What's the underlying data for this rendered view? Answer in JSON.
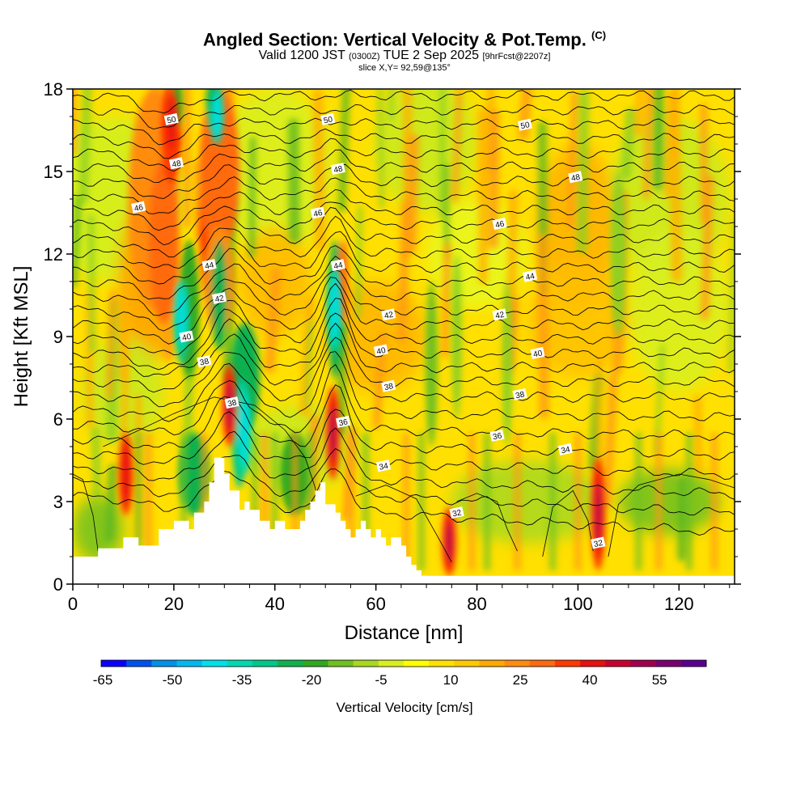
{
  "header": {
    "title": "Angled Section: Vertical Velocity & Pot.Temp.",
    "title_note": "(C)",
    "valid_prefix": "Valid 1200 JST",
    "valid_utc": "(0300Z)",
    "valid_date": "TUE 2 Sep 2025",
    "forecast": "[9hrFcst@2207z]",
    "slice": "slice X,Y= 92,59@135°"
  },
  "chart_data": {
    "type": "heatmap",
    "title": "Angled Section: Vertical Velocity & Pot.Temp.",
    "xlabel": "Distance [nm]",
    "ylabel": "Height [Kft MSL]",
    "xlim": [
      0,
      131
    ],
    "ylim": [
      0,
      18
    ],
    "x_ticks": [
      0,
      20,
      40,
      60,
      80,
      100,
      120
    ],
    "y_ticks": [
      0,
      3,
      6,
      9,
      12,
      15,
      18
    ],
    "colorbar": {
      "title": "Vertical Velocity [cm/s]",
      "tick_labels": [
        "-65",
        "-50",
        "-35",
        "-20",
        "-5",
        "10",
        "25",
        "40",
        "55"
      ],
      "colors": [
        "#0a00ff",
        "#0050f0",
        "#0090e8",
        "#00b8f0",
        "#00e0e8",
        "#00d8b0",
        "#00c888",
        "#10b050",
        "#30a820",
        "#70c020",
        "#a8d820",
        "#d8f020",
        "#ffff00",
        "#ffe000",
        "#ffc800",
        "#ffa800",
        "#ff8c10",
        "#ff6a10",
        "#ff3800",
        "#e81010",
        "#c80030",
        "#a00050",
        "#7a0070",
        "#5a0090"
      ]
    },
    "theta_contours": {
      "levels": [
        32,
        34,
        36,
        38,
        40,
        42,
        44,
        46,
        48,
        50
      ],
      "labels": [
        {
          "text": "50",
          "x": 19.5,
          "y": 16.9
        },
        {
          "text": "50",
          "x": 50.5,
          "y": 16.9
        },
        {
          "text": "50",
          "x": 89.5,
          "y": 16.7
        },
        {
          "text": "48",
          "x": 20.5,
          "y": 15.3
        },
        {
          "text": "48",
          "x": 52.5,
          "y": 15.1
        },
        {
          "text": "48",
          "x": 99.5,
          "y": 14.8
        },
        {
          "text": "46",
          "x": 13,
          "y": 13.7
        },
        {
          "text": "46",
          "x": 48.5,
          "y": 13.5
        },
        {
          "text": "46",
          "x": 84.5,
          "y": 13.1
        },
        {
          "text": "44",
          "x": 27,
          "y": 11.6
        },
        {
          "text": "44",
          "x": 52.5,
          "y": 11.6
        },
        {
          "text": "44",
          "x": 90.5,
          "y": 11.2
        },
        {
          "text": "42",
          "x": 29,
          "y": 10.4
        },
        {
          "text": "42",
          "x": 62.5,
          "y": 9.8
        },
        {
          "text": "42",
          "x": 84.5,
          "y": 9.8
        },
        {
          "text": "40",
          "x": 22.5,
          "y": 9.0
        },
        {
          "text": "40",
          "x": 61,
          "y": 8.5
        },
        {
          "text": "40",
          "x": 92,
          "y": 8.4
        },
        {
          "text": "38",
          "x": 26,
          "y": 8.1
        },
        {
          "text": "38",
          "x": 62.5,
          "y": 7.2
        },
        {
          "text": "38",
          "x": 88.5,
          "y": 6.9
        },
        {
          "text": "38",
          "x": 31.5,
          "y": 6.6
        },
        {
          "text": "36",
          "x": 53.5,
          "y": 5.9
        },
        {
          "text": "36",
          "x": 84,
          "y": 5.4
        },
        {
          "text": "34",
          "x": 61.5,
          "y": 4.3
        },
        {
          "text": "34",
          "x": 97.5,
          "y": 4.9
        },
        {
          "text": "32",
          "x": 76,
          "y": 2.6
        },
        {
          "text": "32",
          "x": 104,
          "y": 1.5
        }
      ]
    },
    "terrain_profile": {
      "x": [
        0,
        5,
        5,
        10,
        10,
        13,
        13,
        17,
        17,
        20,
        20,
        23,
        23,
        24,
        24,
        26,
        26,
        27,
        27,
        28,
        28,
        30,
        30,
        31,
        31,
        33,
        33,
        34,
        34,
        35,
        35,
        37,
        37,
        39,
        39,
        40,
        40,
        42,
        42,
        45,
        45,
        46,
        46,
        47,
        47,
        48,
        48,
        49,
        49,
        50,
        50,
        52,
        52,
        53,
        53,
        54,
        54,
        55,
        55,
        56,
        56,
        57,
        57,
        58,
        58,
        59,
        59,
        60,
        60,
        61,
        61,
        62,
        62,
        63,
        63,
        65,
        65,
        66,
        66,
        67,
        67,
        68,
        68,
        69,
        69,
        70,
        70,
        71,
        71,
        72,
        72,
        131
      ],
      "y": [
        1.0,
        1.0,
        1.3,
        1.3,
        1.7,
        1.7,
        1.4,
        1.4,
        2.0,
        2.0,
        2.3,
        2.3,
        2.0,
        2.0,
        2.6,
        2.6,
        3.0,
        3.0,
        3.7,
        3.7,
        4.6,
        4.6,
        4.0,
        4.0,
        3.4,
        3.4,
        2.7,
        2.7,
        3.0,
        3.0,
        2.7,
        2.7,
        2.3,
        2.3,
        2.0,
        2.0,
        2.3,
        2.3,
        2.0,
        2.0,
        2.3,
        2.3,
        2.7,
        2.7,
        3.0,
        3.0,
        3.4,
        3.4,
        3.7,
        3.7,
        2.9,
        2.9,
        2.6,
        2.6,
        2.3,
        2.3,
        2.0,
        2.0,
        1.7,
        1.7,
        2.0,
        2.0,
        2.3,
        2.3,
        2.0,
        2.0,
        1.7,
        1.7,
        2.0,
        2.0,
        1.7,
        1.7,
        1.4,
        1.4,
        1.7,
        1.7,
        1.4,
        1.4,
        1.0,
        1.0,
        0.7,
        0.7,
        0.5,
        0.5,
        0.3,
        0.3,
        0.2,
        0.2,
        0.1,
        0.1,
        0.0,
        0.0
      ]
    },
    "updraft_cores": [
      {
        "x": 31,
        "z_min": 5.0,
        "z_max": 8.0,
        "value": 55
      },
      {
        "x": 51.5,
        "z_min": 3.8,
        "z_max": 7.2,
        "value": 45
      },
      {
        "x": 74.5,
        "z_min": 0.3,
        "z_max": 2.8,
        "value": 45
      },
      {
        "x": 104,
        "z_min": 0.5,
        "z_max": 4.6,
        "value": 55
      },
      {
        "x": 10.5,
        "z_min": 2.5,
        "z_max": 5.5,
        "value": 30
      },
      {
        "x": 19.5,
        "z_min": 15.5,
        "z_max": 18.0,
        "value": 35
      }
    ],
    "downdraft_cores": [
      {
        "x": 34,
        "z_min": 4.0,
        "z_max": 7.0,
        "value": -35
      },
      {
        "x": 51.8,
        "z_min": 8.5,
        "z_max": 11.5,
        "value": -35
      },
      {
        "x": 21.5,
        "z_min": 8.5,
        "z_max": 11.0,
        "value": -30
      },
      {
        "x": 28.5,
        "z_min": 16.0,
        "z_max": 18.0,
        "value": -30
      }
    ]
  }
}
